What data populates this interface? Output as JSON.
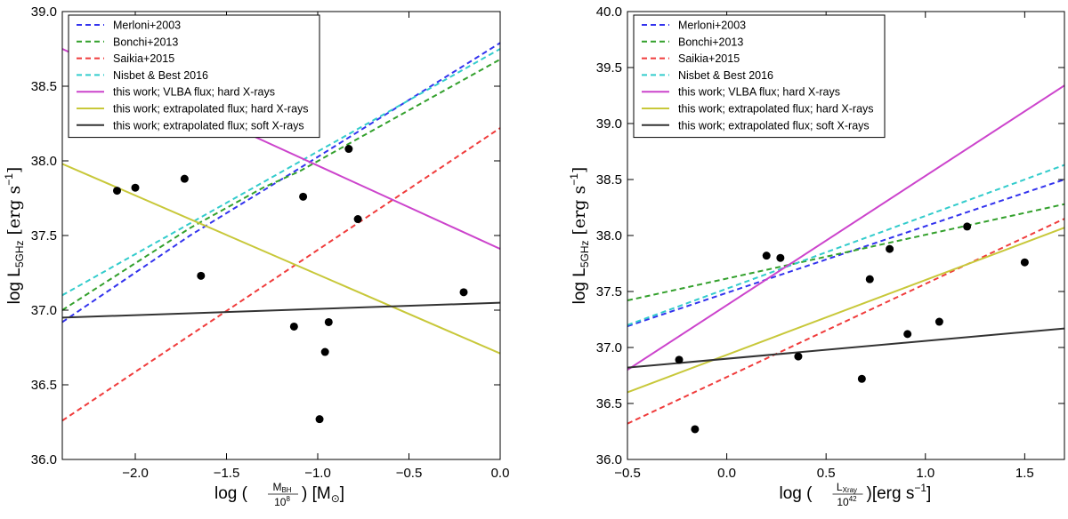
{
  "chart_data": [
    {
      "type": "scatter",
      "xlabel": "log (M_BH / 10^8) [M_sun]",
      "xlabel_parts": {
        "prefix": "log (",
        "num": "M",
        "num_sub": "BH",
        "den": "10",
        "den_sup": "8",
        "suffix": ") [M",
        "unit_sub": "⊙",
        "close": "]"
      },
      "ylabel": "log L_5GHz [erg s^-1]",
      "ylabel_parts": {
        "prefix": "log L",
        "sub": "5GHz",
        "unit": "[erg s",
        "sup": "−1",
        "close": "]"
      },
      "xlim": [
        -2.4,
        0.0
      ],
      "ylim": [
        36.0,
        39.0
      ],
      "xticks": [
        -2.0,
        -1.5,
        -1.0,
        -0.5,
        0.0
      ],
      "xtick_labels": [
        "−2.0",
        "−1.5",
        "−1.0",
        "−0.5",
        "0.0"
      ],
      "yticks": [
        36.0,
        36.5,
        37.0,
        37.5,
        38.0,
        38.5,
        39.0
      ],
      "ytick_labels": [
        "36.0",
        "36.5",
        "37.0",
        "37.5",
        "38.0",
        "38.5",
        "39.0"
      ],
      "legend_position": "top-left",
      "points": [
        {
          "x": -2.1,
          "y": 37.8
        },
        {
          "x": -2.0,
          "y": 37.82
        },
        {
          "x": -1.73,
          "y": 37.88
        },
        {
          "x": -1.64,
          "y": 37.23
        },
        {
          "x": -1.13,
          "y": 36.89
        },
        {
          "x": -1.08,
          "y": 37.76
        },
        {
          "x": -0.99,
          "y": 36.27
        },
        {
          "x": -0.96,
          "y": 36.72
        },
        {
          "x": -0.94,
          "y": 36.92
        },
        {
          "x": -0.83,
          "y": 38.08
        },
        {
          "x": -0.78,
          "y": 37.61
        },
        {
          "x": -0.2,
          "y": 37.12
        }
      ],
      "series": [
        {
          "name": "Merloni+2003",
          "color": "#3333ee",
          "style": "dashed",
          "x": [
            -2.4,
            -1.7,
            -1.3,
            -1.1,
            0.0
          ],
          "y": [
            36.92,
            37.5,
            37.8,
            37.95,
            38.79
          ]
        },
        {
          "name": "Bonchi+2013",
          "color": "#33a02c",
          "style": "dashed",
          "x": [
            -2.4,
            -1.7,
            -1.3,
            -1.1,
            0.0
          ],
          "y": [
            37.0,
            37.55,
            37.82,
            37.93,
            38.68
          ]
        },
        {
          "name": "Saikia+2015",
          "color": "#f03c3c",
          "style": "dashed",
          "x": [
            -2.4,
            0.0
          ],
          "y": [
            36.26,
            38.22
          ]
        },
        {
          "name": "Nisbet & Best 2016",
          "color": "#33cccc",
          "style": "dashed",
          "x": [
            -2.4,
            0.0
          ],
          "y": [
            37.1,
            38.75
          ]
        },
        {
          "name": "this work; VLBA flux; hard X-rays",
          "color": "#cc44cc",
          "style": "solid",
          "x": [
            -2.4,
            0.0
          ],
          "y": [
            38.75,
            37.41
          ]
        },
        {
          "name": "this work; extrapolated flux; hard X-rays",
          "color": "#c8c83a",
          "style": "solid",
          "x": [
            -2.4,
            0.0
          ],
          "y": [
            37.98,
            36.71
          ]
        },
        {
          "name": "this work; extrapolated flux; soft X-rays",
          "color": "#333333",
          "style": "solid",
          "x": [
            -2.4,
            0.0
          ],
          "y": [
            36.95,
            37.05
          ]
        }
      ]
    },
    {
      "type": "scatter",
      "xlabel": "log (L_Xray / 10^42) [erg s^-1]",
      "xlabel_parts": {
        "prefix": "log (",
        "num": "L",
        "num_sub": "Xray",
        "den": "10",
        "den_sup": "42",
        "suffix": ")[erg s",
        "sup": "−1",
        "close": "]"
      },
      "ylabel": "log L_5GHz [erg s^-1]",
      "ylabel_parts": {
        "prefix": "log L",
        "sub": "5GHz",
        "unit": "[erg s",
        "sup": "−1",
        "close": "]"
      },
      "xlim": [
        -0.5,
        1.7
      ],
      "ylim": [
        36.0,
        40.0
      ],
      "xticks": [
        -0.5,
        0.0,
        0.5,
        1.0,
        1.5
      ],
      "xtick_labels": [
        "−0.5",
        "0.0",
        "0.5",
        "1.0",
        "1.5"
      ],
      "yticks": [
        36.0,
        36.5,
        37.0,
        37.5,
        38.0,
        38.5,
        39.0,
        39.5,
        40.0
      ],
      "ytick_labels": [
        "36.0",
        "36.5",
        "37.0",
        "37.5",
        "38.0",
        "38.5",
        "39.0",
        "39.5",
        "40.0"
      ],
      "legend_position": "top-left",
      "points": [
        {
          "x": -0.24,
          "y": 36.89
        },
        {
          "x": -0.16,
          "y": 36.27
        },
        {
          "x": 0.2,
          "y": 37.82
        },
        {
          "x": 0.27,
          "y": 37.8
        },
        {
          "x": 0.36,
          "y": 36.92
        },
        {
          "x": 0.68,
          "y": 36.72
        },
        {
          "x": 0.72,
          "y": 37.61
        },
        {
          "x": 0.82,
          "y": 37.88
        },
        {
          "x": 0.91,
          "y": 37.12
        },
        {
          "x": 1.07,
          "y": 37.23
        },
        {
          "x": 1.21,
          "y": 38.08
        },
        {
          "x": 1.5,
          "y": 37.76
        }
      ],
      "series": [
        {
          "name": "Merloni+2003",
          "color": "#3333ee",
          "style": "dashed",
          "x": [
            -0.5,
            1.7
          ],
          "y": [
            37.19,
            38.5
          ]
        },
        {
          "name": "Bonchi+2013",
          "color": "#33a02c",
          "style": "dashed",
          "x": [
            -0.5,
            1.7
          ],
          "y": [
            37.42,
            38.28
          ]
        },
        {
          "name": "Saikia+2015",
          "color": "#f03c3c",
          "style": "dashed",
          "x": [
            -0.5,
            1.7
          ],
          "y": [
            36.32,
            38.15
          ]
        },
        {
          "name": "Nisbet & Best 2016",
          "color": "#33cccc",
          "style": "dashed",
          "x": [
            -0.5,
            1.7
          ],
          "y": [
            37.2,
            38.63
          ]
        },
        {
          "name": "this work; VLBA flux; hard X-rays",
          "color": "#cc44cc",
          "style": "solid",
          "x": [
            -0.5,
            1.7
          ],
          "y": [
            36.8,
            39.34
          ]
        },
        {
          "name": "this work; extrapolated flux; hard X-rays",
          "color": "#c8c83a",
          "style": "solid",
          "x": [
            -0.5,
            1.7
          ],
          "y": [
            36.6,
            38.07
          ]
        },
        {
          "name": "this work; extrapolated flux; soft X-rays",
          "color": "#333333",
          "style": "solid",
          "x": [
            -0.5,
            1.7
          ],
          "y": [
            36.82,
            37.17
          ]
        }
      ]
    }
  ]
}
